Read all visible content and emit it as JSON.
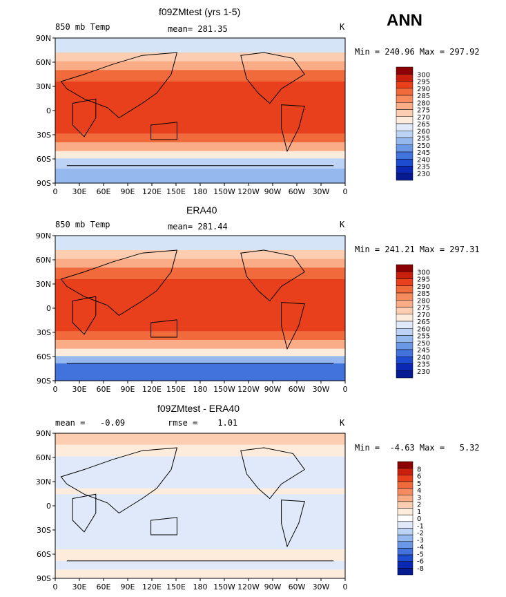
{
  "season": "ANN",
  "x_ticks": [
    "0",
    "30E",
    "60E",
    "90E",
    "120E",
    "150E",
    "180",
    "150W",
    "120W",
    "90W",
    "60W",
    "30W",
    "0"
  ],
  "y_ticks": [
    "90N",
    "60N",
    "30N",
    "0",
    "30S",
    "60S",
    "90S"
  ],
  "chart_data": [
    {
      "type": "heatmap",
      "title": "f09ZMtest (yrs 1-5)",
      "left_label": "850 mb Temp",
      "center_label": "mean= 281.35",
      "right_label": "K",
      "minmax": "Min = 240.96 Max = 297.92",
      "min": 240.96,
      "max": 297.92,
      "mean": 281.35,
      "colorbar": {
        "labels": [
          "300",
          "295",
          "290",
          "285",
          "280",
          "275",
          "270",
          "265",
          "260",
          "255",
          "250",
          "245",
          "240",
          "235",
          "230"
        ],
        "colors": [
          "#8b0000",
          "#c8200d",
          "#e8401c",
          "#f06a3c",
          "#f58b5e",
          "#f9ac86",
          "#fccdb0",
          "#fdebdb",
          "#dfe9f9",
          "#bdd3f5",
          "#95b8ef",
          "#6a97e6",
          "#4272db",
          "#1e4cd0",
          "#0b28b4",
          "#061b8f"
        ]
      }
    },
    {
      "type": "heatmap",
      "title": "ERA40",
      "left_label": "850 mb Temp",
      "center_label": "mean= 281.44",
      "right_label": "K",
      "minmax": "Min = 241.21 Max = 297.31",
      "min": 241.21,
      "max": 297.31,
      "mean": 281.44,
      "colorbar": {
        "labels": [
          "300",
          "295",
          "290",
          "285",
          "280",
          "275",
          "270",
          "265",
          "260",
          "255",
          "250",
          "245",
          "240",
          "235",
          "230"
        ],
        "colors": [
          "#8b0000",
          "#c8200d",
          "#e8401c",
          "#f06a3c",
          "#f58b5e",
          "#f9ac86",
          "#fccdb0",
          "#fdebdb",
          "#dfe9f9",
          "#bdd3f5",
          "#95b8ef",
          "#6a97e6",
          "#4272db",
          "#1e4cd0",
          "#0b28b4",
          "#061b8f"
        ]
      }
    },
    {
      "type": "heatmap",
      "title": "f09ZMtest - ERA40",
      "left_label": "mean =   -0.09",
      "center_label": "rmse =    1.01",
      "right_label": "K",
      "minmax": "Min =  -4.63 Max =   5.32",
      "min": -4.63,
      "max": 5.32,
      "mean": -0.09,
      "rmse": 1.01,
      "colorbar": {
        "labels": [
          "8",
          "6",
          "5",
          "4",
          "3",
          "2",
          "1",
          "0",
          "-1",
          "-2",
          "-3",
          "-4",
          "-5",
          "-6",
          "-8"
        ],
        "colors": [
          "#8b0000",
          "#c8200d",
          "#e8401c",
          "#f06a3c",
          "#f58b5e",
          "#f9ac86",
          "#fccdb0",
          "#fdebdb",
          "#ffffff",
          "#dfe9f9",
          "#bdd3f5",
          "#95b8ef",
          "#6a97e6",
          "#4272db",
          "#1e4cd0",
          "#0b28b4",
          "#061b8f"
        ]
      }
    }
  ]
}
